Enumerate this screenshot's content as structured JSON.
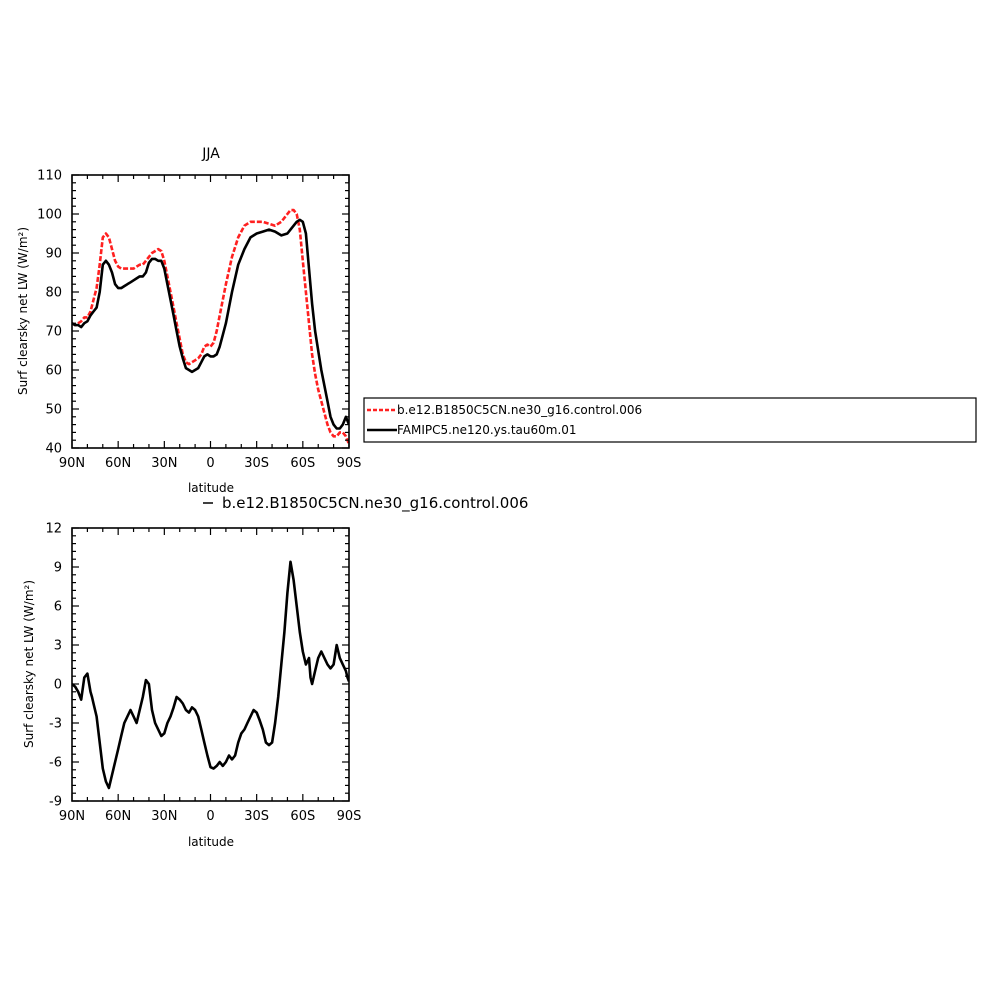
{
  "chart_data": [
    {
      "type": "line",
      "title": "JJA",
      "xlabel": "latitude",
      "ylabel": "Surf clearsky net LW (W/m²)",
      "xlim": [
        90,
        -90
      ],
      "ylim": [
        40,
        110
      ],
      "xticks": [
        {
          "value": 90,
          "label": "90N"
        },
        {
          "value": 60,
          "label": "60N"
        },
        {
          "value": 30,
          "label": "30N"
        },
        {
          "value": 0,
          "label": "0"
        },
        {
          "value": -30,
          "label": "30S"
        },
        {
          "value": -60,
          "label": "60S"
        },
        {
          "value": -90,
          "label": "90S"
        }
      ],
      "yticks": [
        40,
        50,
        60,
        70,
        80,
        90,
        100,
        110
      ],
      "legend_position": "right",
      "series": [
        {
          "name": "b.e12.B1850C5CN.ne30_g16.control.006",
          "color": "#ff2020",
          "style": "dashed",
          "x": [
            90,
            88,
            86,
            84,
            82,
            80,
            78,
            76,
            74,
            72,
            70,
            68,
            66,
            64,
            62,
            60,
            58,
            56,
            54,
            52,
            50,
            48,
            46,
            44,
            42,
            40,
            38,
            36,
            34,
            32,
            30,
            28,
            26,
            24,
            22,
            20,
            18,
            16,
            14,
            12,
            10,
            8,
            6,
            4,
            2,
            0,
            -2,
            -4,
            -6,
            -8,
            -10,
            -14,
            -18,
            -22,
            -26,
            -30,
            -34,
            -38,
            -42,
            -46,
            -50,
            -52,
            -54,
            -56,
            -58,
            -60,
            -62,
            -64,
            -66,
            -68,
            -70,
            -72,
            -74,
            -76,
            -78,
            -80,
            -82,
            -84,
            -86,
            -88,
            -90
          ],
          "values": [
            72,
            71.5,
            72,
            72.5,
            73.5,
            73.5,
            75,
            78,
            81,
            87,
            94,
            95,
            94,
            91,
            88,
            86.5,
            86,
            86,
            86,
            86,
            86,
            86.5,
            87,
            87,
            88,
            89,
            90,
            90.5,
            91,
            90.5,
            88,
            84,
            80,
            76,
            72,
            68,
            64,
            62,
            61.5,
            62,
            62.5,
            63,
            64,
            66,
            66.5,
            66,
            67,
            70,
            74,
            78,
            82,
            89,
            94,
            97,
            98,
            98,
            98,
            97.5,
            97,
            98,
            100,
            101,
            101,
            100,
            96,
            88,
            80,
            72,
            64,
            59,
            55,
            52,
            49,
            46,
            44,
            43,
            43,
            44,
            44,
            43,
            41
          ]
        },
        {
          "name": "FAMIPC5.ne120.ys.tau60m.01",
          "color": "#000000",
          "style": "solid",
          "x": [
            90,
            88,
            86,
            84,
            82,
            80,
            78,
            76,
            74,
            72,
            70,
            68,
            66,
            64,
            62,
            60,
            58,
            56,
            54,
            52,
            50,
            48,
            46,
            44,
            42,
            40,
            38,
            36,
            34,
            32,
            30,
            28,
            26,
            24,
            22,
            20,
            18,
            16,
            14,
            12,
            10,
            8,
            6,
            4,
            2,
            0,
            -2,
            -4,
            -6,
            -8,
            -10,
            -14,
            -18,
            -22,
            -26,
            -30,
            -34,
            -38,
            -42,
            -46,
            -50,
            -52,
            -54,
            -56,
            -58,
            -60,
            -62,
            -64,
            -66,
            -68,
            -70,
            -72,
            -74,
            -76,
            -78,
            -80,
            -82,
            -84,
            -86,
            -88,
            -90
          ],
          "values": [
            72,
            71.5,
            71.5,
            71,
            72,
            72.5,
            74,
            75,
            76,
            80,
            87,
            88,
            87,
            85,
            82,
            81,
            81,
            81.5,
            82,
            82.5,
            83,
            83.5,
            84,
            84,
            85,
            87.5,
            88.5,
            88.5,
            88,
            88,
            86,
            82,
            78,
            74,
            70,
            66,
            63,
            60.5,
            60,
            59.5,
            60,
            60.5,
            62,
            63.5,
            64,
            63.5,
            63.5,
            64,
            66,
            69,
            72,
            80,
            87,
            91,
            94,
            95,
            95.5,
            96,
            95.5,
            94.5,
            95,
            96,
            97,
            98,
            98.5,
            98,
            95,
            86,
            77,
            70,
            65,
            60,
            56,
            52,
            48,
            46,
            45,
            45,
            46,
            48,
            46
          ]
        }
      ]
    },
    {
      "type": "line",
      "title": "",
      "xlabel": "latitude",
      "ylabel": "Surf clearsky net LW (W/m²)",
      "xlim": [
        90,
        -90
      ],
      "ylim": [
        -9,
        12
      ],
      "xticks": [
        {
          "value": 90,
          "label": "90N"
        },
        {
          "value": 60,
          "label": "60N"
        },
        {
          "value": 30,
          "label": "30N"
        },
        {
          "value": 0,
          "label": "0"
        },
        {
          "value": -30,
          "label": "30S"
        },
        {
          "value": -60,
          "label": "60S"
        },
        {
          "value": -90,
          "label": "90S"
        }
      ],
      "yticks": [
        -9,
        -6,
        -3,
        0,
        3,
        6,
        9,
        12
      ],
      "legend_position": "top",
      "series": [
        {
          "name": "b.e12.B1850C5CN.ne30_g16.control.006",
          "color": "#000000",
          "style": "solid",
          "x": [
            90,
            88,
            86,
            84,
            82,
            80,
            78,
            77,
            76,
            74,
            72,
            70,
            68,
            66,
            64,
            62,
            60,
            58,
            56,
            54,
            52,
            50,
            48,
            46,
            44,
            42,
            40,
            38,
            36,
            34,
            32,
            30,
            28,
            26,
            24,
            22,
            20,
            18,
            16,
            14,
            12,
            10,
            8,
            6,
            4,
            2,
            0,
            -2,
            -4,
            -6,
            -8,
            -10,
            -12,
            -14,
            -16,
            -18,
            -20,
            -22,
            -24,
            -26,
            -28,
            -30,
            -32,
            -34,
            -36,
            -38,
            -40,
            -42,
            -44,
            -46,
            -48,
            -50,
            -52,
            -54,
            -56,
            -58,
            -60,
            -62,
            -64,
            -65,
            -66,
            -68,
            -70,
            -72,
            -74,
            -76,
            -78,
            -80,
            -82,
            -84,
            -86,
            -88,
            -89,
            -90
          ],
          "values": [
            0,
            -0.2,
            -0.6,
            -1.2,
            0.5,
            0.8,
            -0.6,
            -1.0,
            -1.5,
            -2.5,
            -4.5,
            -6.5,
            -7.5,
            -8.0,
            -7.0,
            -6.0,
            -5.0,
            -4.0,
            -3.0,
            -2.5,
            -2.0,
            -2.5,
            -3.0,
            -2.0,
            -1.0,
            0.3,
            0.0,
            -2.0,
            -3.0,
            -3.5,
            -4.0,
            -3.8,
            -3.0,
            -2.5,
            -1.8,
            -1.0,
            -1.2,
            -1.5,
            -2.0,
            -2.2,
            -1.8,
            -2.0,
            -2.5,
            -3.5,
            -4.5,
            -5.5,
            -6.4,
            -6.5,
            -6.3,
            -6.0,
            -6.3,
            -6.0,
            -5.5,
            -5.8,
            -5.5,
            -4.5,
            -3.8,
            -3.5,
            -3.0,
            -2.5,
            -2.0,
            -2.2,
            -2.8,
            -3.5,
            -4.5,
            -4.7,
            -4.5,
            -3.0,
            -1.0,
            1.5,
            4.0,
            7.0,
            9.4,
            8.0,
            6.0,
            4.0,
            2.5,
            1.5,
            2.0,
            0.5,
            0.0,
            1.0,
            2.0,
            2.5,
            2.0,
            1.5,
            1.2,
            1.5,
            3.0,
            2.0,
            1.5,
            1.0,
            0.5,
            0.2
          ]
        }
      ]
    }
  ]
}
